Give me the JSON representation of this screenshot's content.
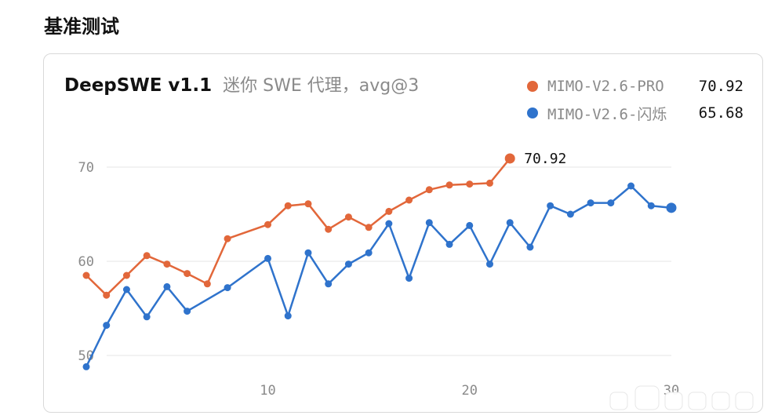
{
  "page": {
    "section_title": "基准测试"
  },
  "chart_data": {
    "type": "line",
    "title": "DeepSWE v1.1",
    "subtitle": "迷你 SWE 代理，avg@3",
    "xlabel": "",
    "ylabel": "",
    "xlim": [
      1,
      30
    ],
    "ylim": [
      47,
      72
    ],
    "xticks": [
      10,
      20,
      30
    ],
    "yticks": [
      50,
      60,
      70
    ],
    "grid": "horizontal",
    "legend_position": "top-right",
    "series": [
      {
        "name": "MIMO-V2.6-PRO",
        "color": "#e2673a",
        "final_label": "70.92",
        "x": [
          1,
          2,
          3,
          4,
          5,
          6,
          7,
          8,
          10,
          11,
          12,
          13,
          14,
          15,
          16,
          17,
          18,
          19,
          20,
          21,
          22
        ],
        "y": [
          58.5,
          56.4,
          58.5,
          60.6,
          59.7,
          58.7,
          57.6,
          62.4,
          63.9,
          65.9,
          66.1,
          63.4,
          64.7,
          63.6,
          65.3,
          66.5,
          67.6,
          68.1,
          68.2,
          68.3,
          70.92
        ]
      },
      {
        "name": "MIMO-V2.6-闪烁",
        "color": "#2f73cc",
        "final_label": "65.68",
        "x": [
          1,
          2,
          3,
          4,
          5,
          6,
          8,
          10,
          11,
          12,
          13,
          14,
          15,
          16,
          17,
          18,
          19,
          20,
          21,
          22,
          23,
          24,
          25,
          26,
          27,
          28,
          29,
          30
        ],
        "y": [
          48.8,
          53.2,
          57.0,
          54.1,
          57.3,
          54.7,
          57.2,
          60.3,
          54.2,
          60.9,
          57.6,
          59.7,
          60.9,
          64.0,
          58.2,
          64.1,
          61.8,
          63.8,
          59.7,
          64.1,
          61.5,
          65.9,
          65.0,
          66.2,
          66.2,
          68.0,
          65.9,
          65.68
        ]
      }
    ]
  }
}
